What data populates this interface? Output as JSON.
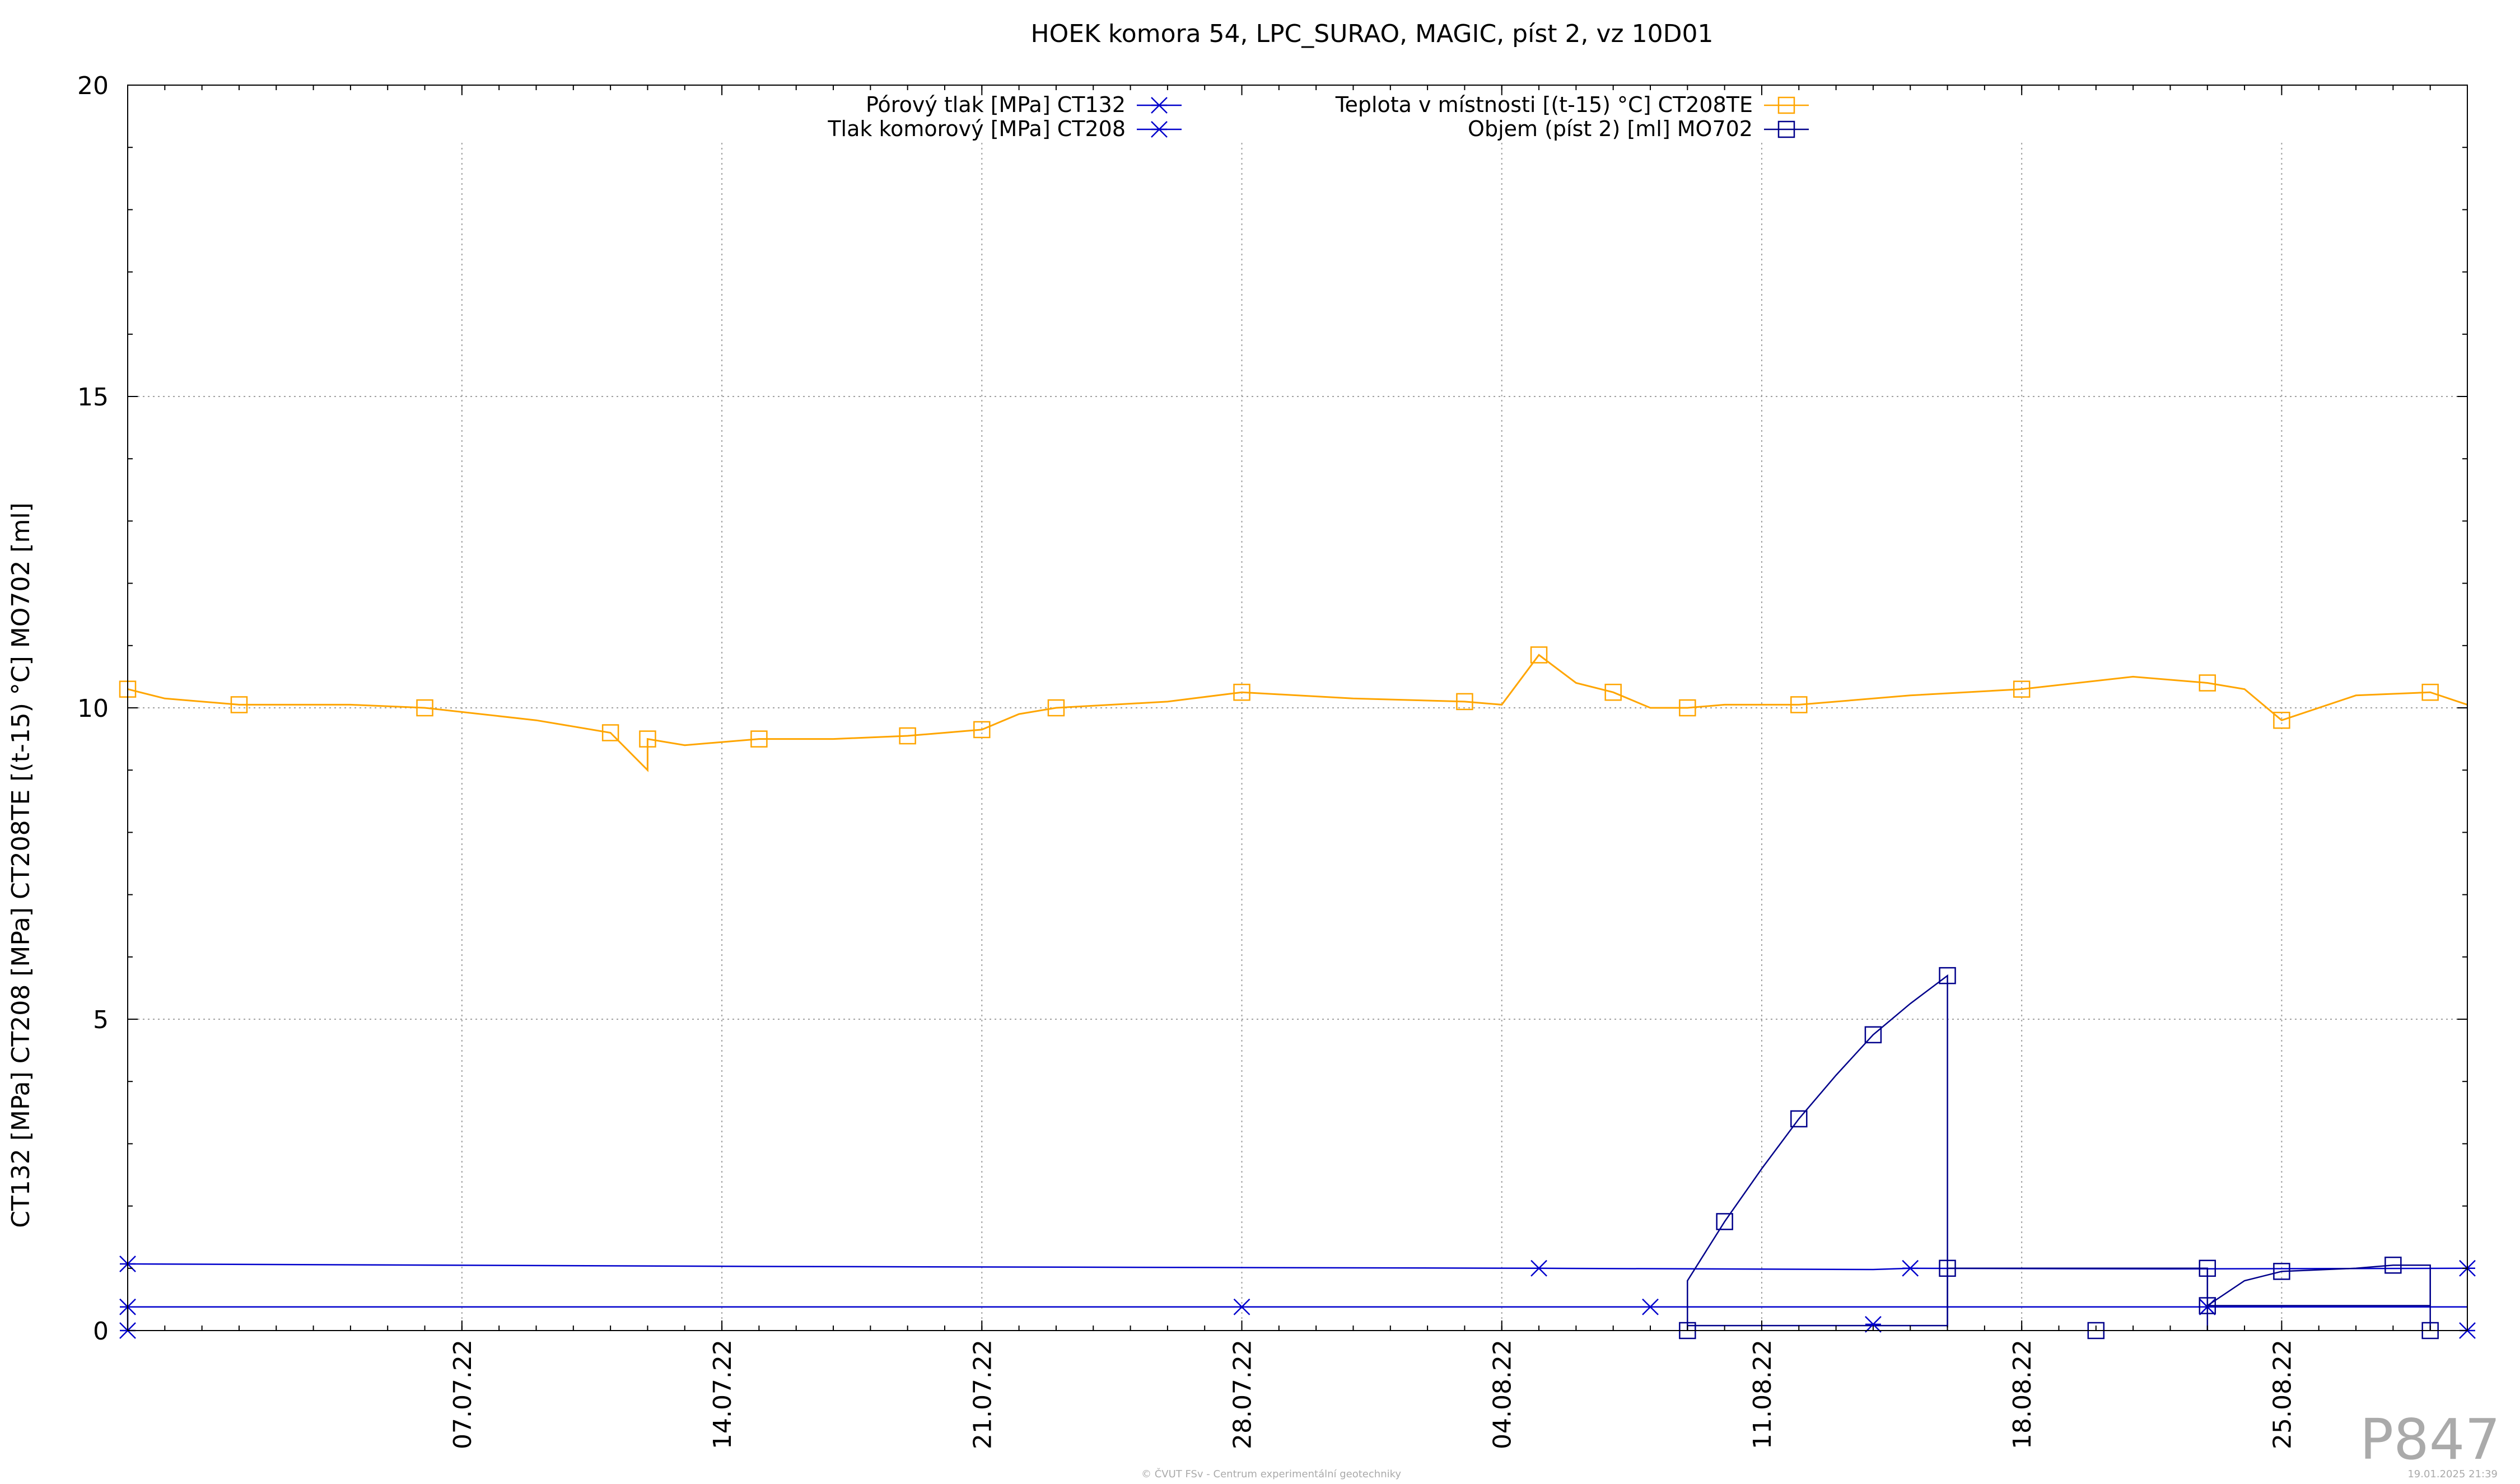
{
  "chart_data": {
    "type": "line",
    "title": "HOEK komora 54, LPC_SURAO, MAGIC, píst 2, vz 10D01",
    "ylabel": "CT132 [MPa] CT208 [MPa] CT208TE [(t-15) °C] MO702 [ml]",
    "ylim": [
      0,
      20
    ],
    "yticks": [
      0,
      5,
      10,
      15,
      20
    ],
    "grid": true,
    "legend_position": "top",
    "x_is_date": true,
    "xlim": [
      "2022-06-28",
      "2022-08-30"
    ],
    "xtick_dates": [
      "2022-07-07",
      "2022-07-14",
      "2022-07-21",
      "2022-07-28",
      "2022-08-04",
      "2022-08-11",
      "2022-08-18",
      "2022-08-25"
    ],
    "xtick_labels": [
      "07.07.22",
      "14.07.22",
      "21.07.22",
      "28.07.22",
      "04.08.22",
      "11.08.22",
      "18.08.22",
      "25.08.22"
    ],
    "series": [
      {
        "name": "Pórový tlak [MPa] CT132",
        "color": "#0000cc",
        "marker": "asterisk",
        "x": [
          "2022-06-28",
          "2022-07-15",
          "2022-08-05",
          "2022-08-14",
          "2022-08-15",
          "2022-08-22",
          "2022-08-30"
        ],
        "y": [
          1.07,
          1.03,
          1.0,
          0.98,
          1.0,
          0.99,
          1.0
        ]
      },
      {
        "name": "Tlak komorový [MPa] CT208",
        "color": "#0000cc",
        "marker": "asterisk",
        "x": [
          "2022-06-28",
          "2022-06-28",
          "2022-06-28",
          "2022-06-28",
          "2022-07-28",
          "2022-08-08",
          "2022-08-08",
          "2022-08-08",
          "2022-08-23",
          "2022-08-23",
          "2022-08-23",
          "2022-08-30"
        ],
        "y": [
          0.0,
          0.0,
          0.38,
          0.38,
          0.38,
          0.38,
          0.38,
          0.38,
          0.38,
          0.38,
          0.38,
          0.38
        ]
      },
      {
        "name": "Teplota v místnosti [(t-15) °C] CT208TE",
        "color": "#ffa500",
        "marker": "square",
        "x": [
          "2022-06-28",
          "2022-06-29",
          "2022-07-01",
          "2022-07-04",
          "2022-07-06",
          "2022-07-09",
          "2022-07-11",
          "2022-07-12",
          "2022-07-12",
          "2022-07-13",
          "2022-07-15",
          "2022-07-17",
          "2022-07-19",
          "2022-07-20",
          "2022-07-21",
          "2022-07-22",
          "2022-07-23",
          "2022-07-26",
          "2022-07-28",
          "2022-07-31",
          "2022-08-03",
          "2022-08-04",
          "2022-08-05",
          "2022-08-06",
          "2022-08-07",
          "2022-08-08",
          "2022-08-09",
          "2022-08-10",
          "2022-08-12",
          "2022-08-15",
          "2022-08-18",
          "2022-08-21",
          "2022-08-23",
          "2022-08-24",
          "2022-08-25",
          "2022-08-27",
          "2022-08-29",
          "2022-08-30"
        ],
        "y": [
          10.3,
          10.15,
          10.05,
          10.05,
          10.0,
          9.8,
          9.6,
          9.0,
          9.5,
          9.4,
          9.5,
          9.5,
          9.55,
          9.6,
          9.65,
          9.9,
          10.0,
          10.1,
          10.25,
          10.15,
          10.1,
          10.05,
          10.85,
          10.4,
          10.25,
          10.0,
          10.0,
          10.05,
          10.05,
          10.2,
          10.3,
          10.5,
          10.4,
          10.3,
          9.8,
          10.2,
          10.25,
          10.05
        ]
      },
      {
        "name": "Objem (píst 2) [ml] MO702",
        "color": "#00008b",
        "marker": "square",
        "x": [
          "2022-08-09",
          "2022-08-09",
          "2022-08-10",
          "2022-08-11",
          "2022-08-12",
          "2022-08-13",
          "2022-08-14",
          "2022-08-15",
          "2022-08-16",
          "2022-08-16",
          "2022-08-16",
          "2022-08-16",
          "2022-08-23",
          "2022-08-23",
          "2022-08-23",
          "2022-08-24",
          "2022-08-25",
          "2022-08-27",
          "2022-08-28",
          "2022-08-29",
          "2022-08-29"
        ],
        "y": [
          0.0,
          0.8,
          1.75,
          2.6,
          3.4,
          4.1,
          4.75,
          5.25,
          5.7,
          0.05,
          1.0,
          1.0,
          1.0,
          0.0,
          0.4,
          0.8,
          0.95,
          1.0,
          1.05,
          1.05,
          0.0
        ]
      }
    ],
    "extra_segments": [
      {
        "color": "#00008b",
        "x": [
          "2022-08-09",
          "2022-08-16",
          "2022-08-16"
        ],
        "y": [
          0.08,
          0.08,
          1.0
        ]
      },
      {
        "color": "#00008b",
        "x": [
          "2022-08-23",
          "2022-08-23",
          "2022-08-29",
          "2022-08-29"
        ],
        "y": [
          1.0,
          0.4,
          0.4,
          1.0
        ]
      }
    ],
    "extra_markers": [
      {
        "color": "#00008b",
        "x": "2022-08-20",
        "y": 0.0,
        "marker": "square"
      },
      {
        "color": "#0000cc",
        "x": "2022-08-14",
        "y": 0.1,
        "marker": "asterisk"
      },
      {
        "color": "#0000cc",
        "x": "2022-08-30",
        "y": 0.0,
        "marker": "asterisk"
      }
    ]
  },
  "watermark": {
    "id_label": "P847",
    "footer_center": "© ČVUT FSv - Centrum experimentální geotechniky",
    "footer_right": "19.01.2025 21:39"
  }
}
